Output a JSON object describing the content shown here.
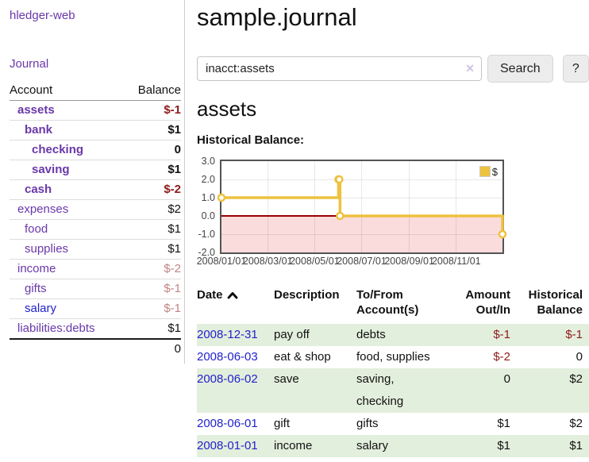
{
  "sidebar": {
    "app_title": "hledger-web",
    "journal_label": "Journal",
    "table": {
      "account_header": "Account",
      "balance_header": "Balance"
    },
    "accounts": [
      {
        "name": "assets",
        "balance": "$-1",
        "level": 1,
        "bold": true,
        "balance_style": "negative-strong",
        "link_style": "purple"
      },
      {
        "name": "bank",
        "balance": "$1",
        "level": 2,
        "bold": true,
        "balance_style": "plain",
        "link_style": "purple"
      },
      {
        "name": "checking",
        "balance": "0",
        "level": 3,
        "bold": true,
        "balance_style": "plain",
        "link_style": "purple"
      },
      {
        "name": "saving",
        "balance": "$1",
        "level": 3,
        "bold": true,
        "balance_style": "plain",
        "link_style": "purple"
      },
      {
        "name": "cash",
        "balance": "$-2",
        "level": 2,
        "bold": true,
        "balance_style": "negative-strong",
        "link_style": "purple"
      },
      {
        "name": "expenses",
        "balance": "$2",
        "level": 1,
        "bold": false,
        "balance_style": "plain",
        "link_style": "purple"
      },
      {
        "name": "food",
        "balance": "$1",
        "level": 2,
        "bold": false,
        "balance_style": "plain",
        "link_style": "purple"
      },
      {
        "name": "supplies",
        "balance": "$1",
        "level": 2,
        "bold": false,
        "balance_style": "plain",
        "link_style": "purple"
      },
      {
        "name": "income",
        "balance": "$-2",
        "level": 1,
        "bold": false,
        "balance_style": "negative-dim",
        "link_style": "purple"
      },
      {
        "name": "gifts",
        "balance": "$-1",
        "level": 2,
        "bold": false,
        "balance_style": "negative-dim",
        "link_style": "purple"
      },
      {
        "name": "salary",
        "balance": "$-1",
        "level": 2,
        "bold": false,
        "balance_style": "negative-dim",
        "link_style": "blue"
      },
      {
        "name": "liabilities:debts",
        "balance": "$1",
        "level": 1,
        "bold": false,
        "balance_style": "plain",
        "link_style": "purple"
      }
    ],
    "total": "0"
  },
  "header": {
    "title": "sample.journal"
  },
  "search": {
    "query": "inacct:assets",
    "clear_icon": "✕",
    "button_label": "Search",
    "help_label": "?"
  },
  "account_page": {
    "heading": "assets",
    "chart_label": "Historical Balance:"
  },
  "chart_data": {
    "type": "line",
    "title": "Historical Balance",
    "legend_label": "$",
    "legend_position": "top-right",
    "grid": true,
    "ylim": [
      -2,
      3
    ],
    "y_ticks": [
      "3.0",
      "2.0",
      "1.0",
      "0.0",
      "-1.0",
      "-2.0"
    ],
    "y_tick_values": [
      3,
      2,
      1,
      0,
      -1,
      -2
    ],
    "x_ticks": [
      "2008/01/01",
      "2008/03/01",
      "2008/05/01",
      "2008/07/01",
      "2008/09/01",
      "2008/11/01"
    ],
    "x_tick_days": [
      0,
      60,
      121,
      182,
      244,
      305
    ],
    "x_span_days": 365,
    "interpolation": "steps",
    "series": [
      {
        "name": "$",
        "color": "#edc240",
        "points": [
          {
            "date": "2008-01-01",
            "day": 0,
            "value": 1
          },
          {
            "date": "2008-06-01",
            "day": 152,
            "value": 2
          },
          {
            "date": "2008-06-02",
            "day": 153,
            "value": 2
          },
          {
            "date": "2008-06-03",
            "day": 154,
            "value": 0
          },
          {
            "date": "2008-12-31",
            "day": 365,
            "value": -1
          }
        ]
      }
    ],
    "negative_region_color": "#fbdcdc",
    "zero_line_color": "#9b0000"
  },
  "register": {
    "columns": [
      {
        "line1": "Date",
        "line2": ""
      },
      {
        "line1": "Description",
        "line2": ""
      },
      {
        "line1": "To/From",
        "line2": "Account(s)"
      },
      {
        "line1": "Amount",
        "line2": "Out/In"
      },
      {
        "line1": "Historical",
        "line2": "Balance"
      }
    ],
    "sort": {
      "column": "Date",
      "direction": "ascending"
    },
    "rows": [
      {
        "date": "2008-12-31",
        "description": "pay off",
        "accounts": "debts",
        "amount": "$-1",
        "balance": "$-1"
      },
      {
        "date": "2008-06-03",
        "description": "eat & shop",
        "accounts": "food, supplies",
        "amount": "$-2",
        "balance": "0"
      },
      {
        "date": "2008-06-02",
        "description": "save",
        "accounts": "saving,\nchecking",
        "amount": "0",
        "balance": "$2"
      },
      {
        "date": "2008-06-01",
        "description": "gift",
        "accounts": "gifts",
        "amount": "$1",
        "balance": "$2"
      },
      {
        "date": "2008-01-01",
        "description": "income",
        "accounts": "salary",
        "amount": "$1",
        "balance": "$1"
      }
    ]
  },
  "colors": {
    "link_purple": "#6a38aa",
    "link_blue": "#2222cc",
    "negative_strong": "#8f1a1a",
    "negative_dim": "#c28383",
    "row_highlight_green": "#e3efdd",
    "chart_line_yellow": "#edc240",
    "chart_negative_pink": "#fbdcdc",
    "chart_zero_line_red": "#9b0000",
    "button_gray": "#ececec"
  }
}
